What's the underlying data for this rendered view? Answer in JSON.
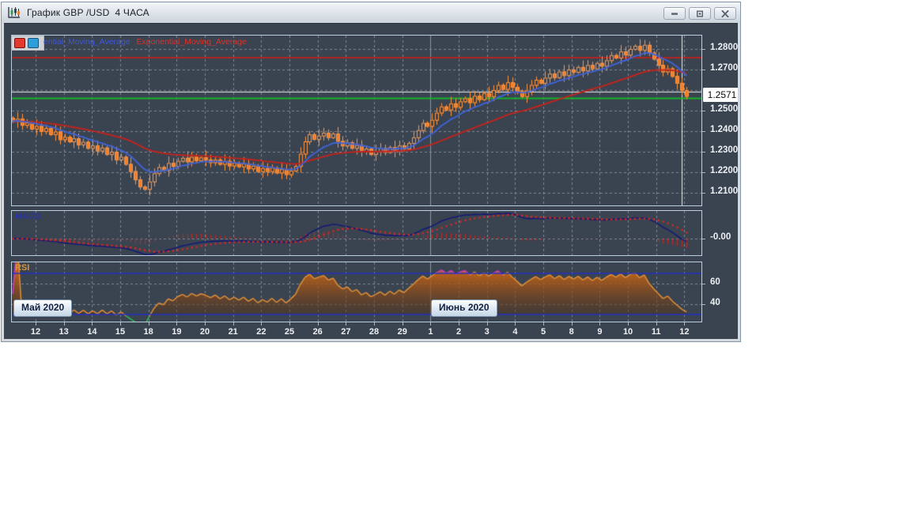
{
  "window": {
    "title": "График GBP /USD  4 ЧАСА",
    "buttons": [
      {
        "name": "minimize"
      },
      {
        "name": "maximize"
      },
      {
        "name": "close"
      }
    ]
  },
  "legend": {
    "swatches": [
      {
        "name": "red",
        "color": "#e23a2c"
      },
      {
        "name": "blue",
        "color": "#2da0dc"
      }
    ],
    "items": [
      {
        "text": "ential_Moving_Average",
        "color": "#3f57da"
      },
      {
        "text": "Exponential_Moving_Average",
        "color": "#e03127"
      }
    ]
  },
  "y_axis": {
    "labels": [
      {
        "text": "1.2800",
        "price": 1.28
      },
      {
        "text": "1.2700",
        "price": 1.27
      },
      {
        "text": "1.2500",
        "price": 1.25
      },
      {
        "text": "1.2400",
        "price": 1.24
      },
      {
        "text": "1.2300",
        "price": 1.23
      },
      {
        "text": "1.2200",
        "price": 1.22
      },
      {
        "text": "1.2100",
        "price": 1.21
      }
    ],
    "price_tag": {
      "text": "1.2571",
      "price": 1.2571
    }
  },
  "x_axis": {
    "labels": [
      "12",
      "13",
      "14",
      "15",
      "18",
      "19",
      "20",
      "21",
      "22",
      "25",
      "26",
      "27",
      "28",
      "29",
      "1",
      "2",
      "3",
      "4",
      "5",
      "8",
      "9",
      "10",
      "11",
      "12"
    ]
  },
  "main_panel": {
    "grid_prices": [
      1.28,
      1.27,
      1.26,
      1.25,
      1.24,
      1.23,
      1.22,
      1.21
    ],
    "levels": {
      "resistance_red": 1.2758,
      "crosshair_white": 1.2592,
      "support_green": 1.256
    },
    "month_separator_day_index": 14,
    "crosshair_bar_index": 142
  },
  "macd_panel": {
    "label": "MACD",
    "axis_label": "-0.00"
  },
  "rsi_panel": {
    "label": "RSI",
    "axis_labels": [
      "60",
      "40"
    ],
    "upper_level": 70,
    "lower_level": 30,
    "grid_values": [
      60,
      40
    ],
    "months": [
      {
        "text": "Май 2020"
      },
      {
        "text": "Июнь 2020"
      }
    ]
  },
  "colors": {
    "background": "#3a4350",
    "grid": "#97a1ad",
    "separator": "#8b95a1",
    "candle_stroke": "#ff9540",
    "candle_fill": "#ef8030",
    "ema_fast": "#3f63d8",
    "ema_slow": "#c4241c",
    "level_red": "#b3241f",
    "level_green": "#12b42a",
    "crosshair": "#e9edef",
    "macd_line": "#10177a",
    "macd_signal": "#d42822",
    "macd_hist": "#c32a22",
    "rsi_line": "#e08f38",
    "rsi_overbought": "#c83cc8",
    "rsi_oversold": "#2ec050",
    "rsi_level_blue": "#2431c0"
  },
  "chart_data": {
    "type": "candlestick",
    "title": "GBP/USD 4H",
    "open_start": 1.2465,
    "closes": [
      1.2448,
      1.246,
      1.243,
      1.2442,
      1.2412,
      1.2425,
      1.24,
      1.2415,
      1.2385,
      1.2398,
      1.236,
      1.2372,
      1.235,
      1.2365,
      1.2335,
      1.2348,
      1.2318,
      1.233,
      1.2305,
      1.232,
      1.2288,
      1.23,
      1.2262,
      1.2275,
      1.224,
      1.2205,
      1.2165,
      1.213,
      1.2118,
      1.2155,
      1.2195,
      1.2225,
      1.221,
      1.2245,
      1.223,
      1.2255,
      1.227,
      1.2252,
      1.2275,
      1.2258,
      1.2272,
      1.2262,
      1.2248,
      1.2262,
      1.224,
      1.2255,
      1.2232,
      1.2245,
      1.2228,
      1.2242,
      1.2218,
      1.2232,
      1.2205,
      1.222,
      1.2205,
      1.2222,
      1.2198,
      1.2215,
      1.219,
      1.2208,
      1.223,
      1.229,
      1.235,
      1.2385,
      1.2362,
      1.2378,
      1.2392,
      1.237,
      1.2388,
      1.2352,
      1.233,
      1.2345,
      1.2318,
      1.2332,
      1.23,
      1.2315,
      1.2288,
      1.2302,
      1.2318,
      1.2298,
      1.2322,
      1.2305,
      1.233,
      1.2315,
      1.2342,
      1.237,
      1.2405,
      1.244,
      1.2425,
      1.2455,
      1.249,
      1.252,
      1.2505,
      1.2535,
      1.2518,
      1.2545,
      1.256,
      1.254,
      1.2572,
      1.2555,
      1.2585,
      1.257,
      1.26,
      1.2625,
      1.2605,
      1.2638,
      1.2615,
      1.2595,
      1.257,
      1.2598,
      1.2625,
      1.265,
      1.2635,
      1.266,
      1.268,
      1.2662,
      1.269,
      1.2672,
      1.27,
      1.2688,
      1.2712,
      1.2695,
      1.2722,
      1.2705,
      1.2732,
      1.2718,
      1.2745,
      1.277,
      1.2758,
      1.2788,
      1.2772,
      1.28,
      1.2815,
      1.2795,
      1.282,
      1.2782,
      1.2752,
      1.2722,
      1.269,
      1.2705,
      1.2668,
      1.2635,
      1.26,
      1.2571
    ],
    "indicators": {
      "ema_fast_period": 10,
      "ema_slow_period": 34,
      "macd": {
        "fast": 12,
        "slow": 26,
        "signal": 9
      },
      "rsi_period": 14
    }
  }
}
